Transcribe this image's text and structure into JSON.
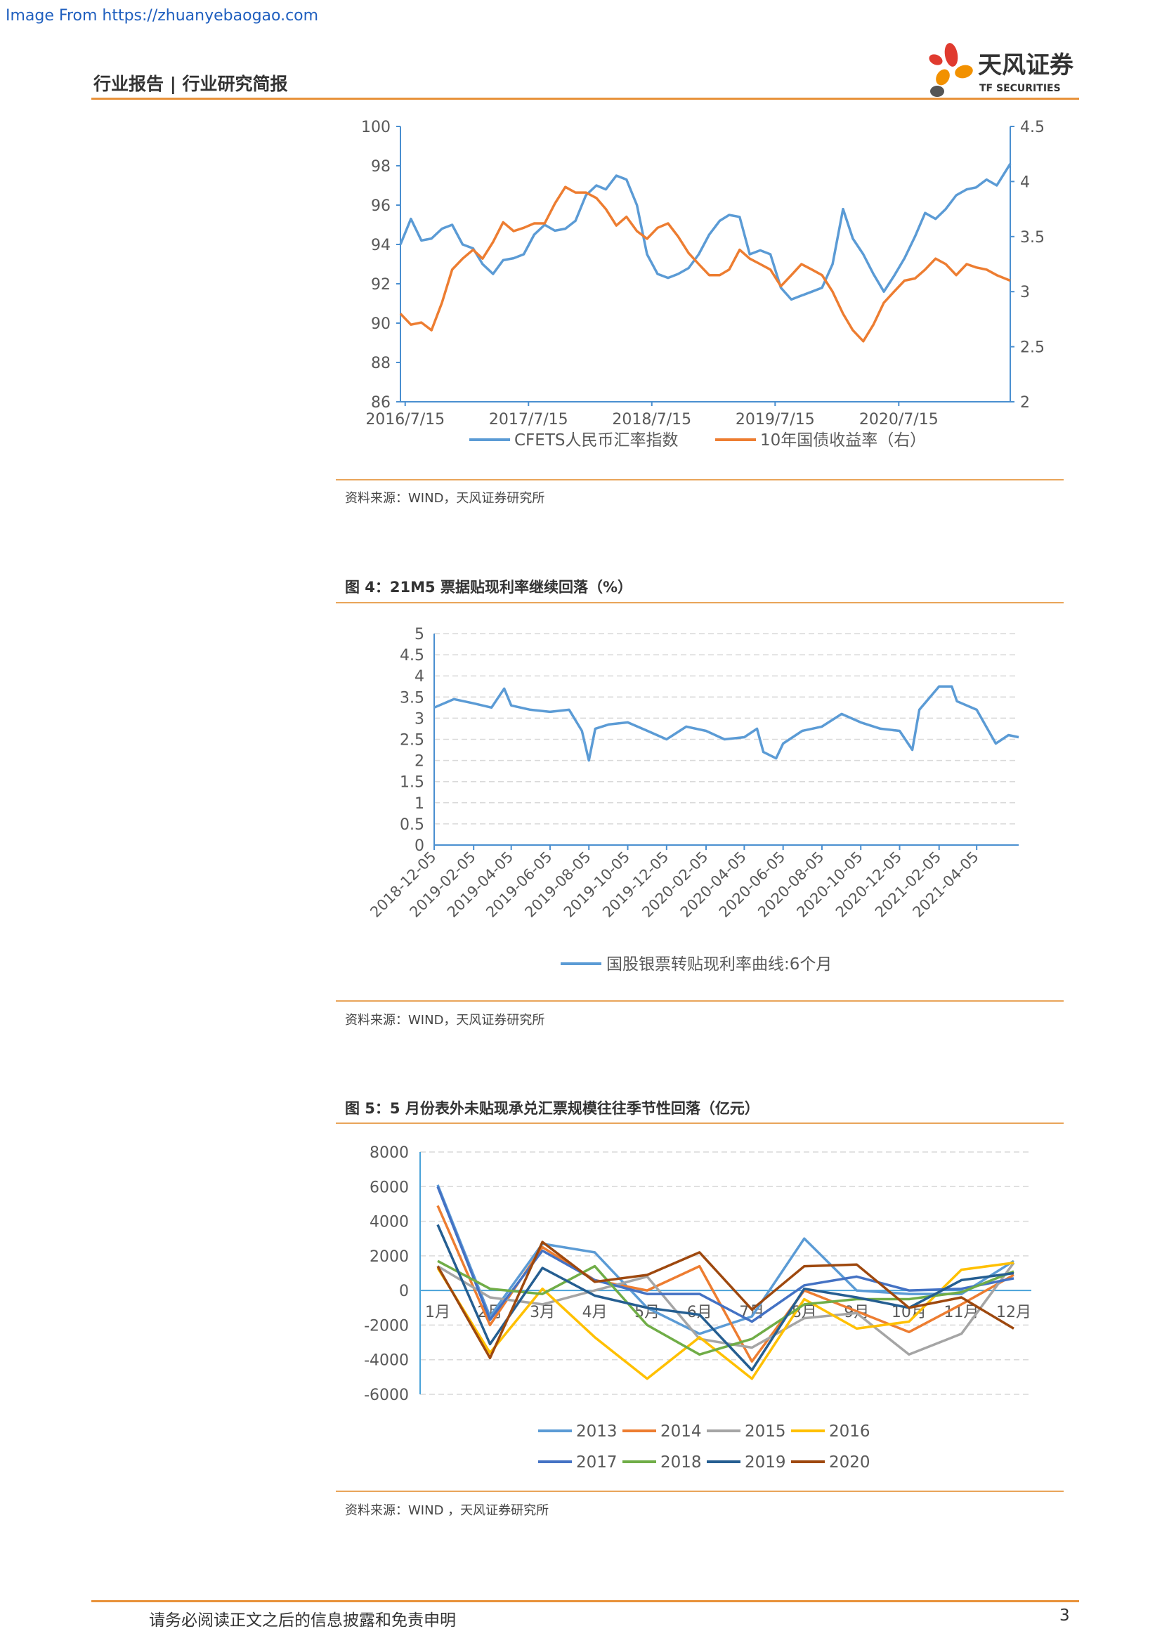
{
  "watermark": "Image From https://zhuanyebaogao.com",
  "header": {
    "title": "行业报告 | 行业研究简报",
    "logo_cn": "天风证券",
    "logo_en": "TF SECURITIES"
  },
  "colors": {
    "accent": "#e8923a",
    "blue": "#5b9bd5",
    "orange": "#ed7d31"
  },
  "figure3": {
    "source": "资料来源：WIND，天风证券研究所",
    "chart_data": {
      "type": "line",
      "x_ticks": [
        "2016/7/15",
        "2017/7/15",
        "2018/7/15",
        "2019/7/15",
        "2020/7/15"
      ],
      "y_left_ticks": [
        "100",
        "98",
        "96",
        "94",
        "92",
        "90",
        "88",
        "86"
      ],
      "y_right_ticks": [
        "4.5",
        "4",
        "3.5",
        "3",
        "2.5",
        "2"
      ],
      "ylim_left": [
        86,
        100
      ],
      "ylim_right": [
        2,
        4.5
      ],
      "xlim": [
        "2016-07-01",
        "2021-06-10"
      ],
      "legend_position": "bottom",
      "series": [
        {
          "name": "CFETS人民币汇率指数",
          "axis": "left",
          "color": "#5b9bd5",
          "x": [
            "2016-07-01",
            "2016-08-01",
            "2016-09-01",
            "2016-10-01",
            "2016-11-01",
            "2016-12-01",
            "2017-01-01",
            "2017-02-01",
            "2017-03-01",
            "2017-04-01",
            "2017-05-01",
            "2017-06-01",
            "2017-07-01",
            "2017-08-01",
            "2017-09-01",
            "2017-10-01",
            "2017-11-01",
            "2017-12-01",
            "2018-01-01",
            "2018-02-01",
            "2018-03-01",
            "2018-04-01",
            "2018-05-01",
            "2018-06-01",
            "2018-07-01",
            "2018-08-01",
            "2018-09-01",
            "2018-10-01",
            "2018-11-01",
            "2018-12-01",
            "2019-01-01",
            "2019-02-01",
            "2019-03-01",
            "2019-04-01",
            "2019-05-01",
            "2019-06-01",
            "2019-07-01",
            "2019-08-01",
            "2019-09-01",
            "2019-10-01",
            "2019-11-01",
            "2019-12-01",
            "2020-01-01",
            "2020-02-01",
            "2020-03-01",
            "2020-04-01",
            "2020-05-01",
            "2020-06-01",
            "2020-07-01",
            "2020-08-01",
            "2020-09-01",
            "2020-10-01",
            "2020-11-01",
            "2020-12-01",
            "2021-01-01",
            "2021-02-01",
            "2021-03-01",
            "2021-04-01",
            "2021-05-01",
            "2021-06-10"
          ],
          "values": [
            94.0,
            95.3,
            94.2,
            94.3,
            94.8,
            95.0,
            94.0,
            93.8,
            93.0,
            92.5,
            93.2,
            93.3,
            93.5,
            94.5,
            95.0,
            94.7,
            94.8,
            95.2,
            96.5,
            97.0,
            96.8,
            97.5,
            97.3,
            96.0,
            93.5,
            92.5,
            92.3,
            92.5,
            92.8,
            93.5,
            94.5,
            95.2,
            95.5,
            95.4,
            93.5,
            93.7,
            93.5,
            91.8,
            91.2,
            91.4,
            91.6,
            91.8,
            93.0,
            95.8,
            94.3,
            93.5,
            92.5,
            91.6,
            92.4,
            93.3,
            94.4,
            95.6,
            95.3,
            95.8,
            96.5,
            96.8,
            96.9,
            97.3,
            97.0,
            98.1
          ]
        },
        {
          "name": "10年国债收益率（右）",
          "axis": "right",
          "color": "#ed7d31",
          "x": [
            "2016-07-01",
            "2016-08-01",
            "2016-09-01",
            "2016-10-01",
            "2016-11-01",
            "2016-12-01",
            "2017-01-01",
            "2017-02-01",
            "2017-03-01",
            "2017-04-01",
            "2017-05-01",
            "2017-06-01",
            "2017-07-01",
            "2017-08-01",
            "2017-09-01",
            "2017-10-01",
            "2017-11-01",
            "2017-12-01",
            "2018-01-01",
            "2018-02-01",
            "2018-03-01",
            "2018-04-01",
            "2018-05-01",
            "2018-06-01",
            "2018-07-01",
            "2018-08-01",
            "2018-09-01",
            "2018-10-01",
            "2018-11-01",
            "2018-12-01",
            "2019-01-01",
            "2019-02-01",
            "2019-03-01",
            "2019-04-01",
            "2019-05-01",
            "2019-06-01",
            "2019-07-01",
            "2019-08-01",
            "2019-09-01",
            "2019-10-01",
            "2019-11-01",
            "2019-12-01",
            "2020-01-01",
            "2020-02-01",
            "2020-03-01",
            "2020-04-01",
            "2020-05-01",
            "2020-06-01",
            "2020-07-01",
            "2020-08-01",
            "2020-09-01",
            "2020-10-01",
            "2020-11-01",
            "2020-12-01",
            "2021-01-01",
            "2021-02-01",
            "2021-03-01",
            "2021-04-01",
            "2021-05-01",
            "2021-06-10"
          ],
          "values": [
            2.8,
            2.7,
            2.72,
            2.65,
            2.9,
            3.2,
            3.3,
            3.38,
            3.3,
            3.45,
            3.63,
            3.55,
            3.58,
            3.62,
            3.62,
            3.8,
            3.95,
            3.9,
            3.9,
            3.85,
            3.75,
            3.6,
            3.68,
            3.55,
            3.48,
            3.58,
            3.62,
            3.5,
            3.35,
            3.25,
            3.15,
            3.15,
            3.2,
            3.38,
            3.3,
            3.25,
            3.2,
            3.05,
            3.15,
            3.25,
            3.2,
            3.15,
            3.0,
            2.8,
            2.65,
            2.55,
            2.7,
            2.9,
            3.0,
            3.1,
            3.12,
            3.2,
            3.3,
            3.25,
            3.15,
            3.25,
            3.22,
            3.2,
            3.15,
            3.1
          ]
        }
      ]
    }
  },
  "figure4": {
    "title": "图 4：21M5 票据贴现利率继续回落（%）",
    "source": "资料来源：WIND，天风证券研究所",
    "chart_data": {
      "type": "line",
      "x_ticks": [
        "2018-12-05",
        "2019-02-05",
        "2019-04-05",
        "2019-06-05",
        "2019-08-05",
        "2019-10-05",
        "2019-12-05",
        "2020-02-05",
        "2020-04-05",
        "2020-06-05",
        "2020-08-05",
        "2020-10-05",
        "2020-12-05",
        "2021-02-05",
        "2021-04-05"
      ],
      "y_ticks": [
        "5",
        "4.5",
        "4",
        "3.5",
        "3",
        "2.5",
        "2",
        "1.5",
        "1",
        "0.5",
        "0"
      ],
      "ylim": [
        0,
        5
      ],
      "xlim": [
        "2018-12-05",
        "2021-06-10"
      ],
      "grid": true,
      "legend_position": "bottom",
      "series": [
        {
          "name": "国股银票转贴现利率曲线:6个月",
          "color": "#5b9bd5",
          "x": [
            "2018-12-05",
            "2019-01-05",
            "2019-02-05",
            "2019-03-05",
            "2019-03-25",
            "2019-04-05",
            "2019-05-05",
            "2019-06-05",
            "2019-07-05",
            "2019-07-25",
            "2019-08-05",
            "2019-08-15",
            "2019-09-05",
            "2019-10-05",
            "2019-11-05",
            "2019-12-05",
            "2020-01-05",
            "2020-02-05",
            "2020-03-05",
            "2020-04-05",
            "2020-04-25",
            "2020-05-05",
            "2020-05-25",
            "2020-06-05",
            "2020-07-05",
            "2020-08-05",
            "2020-09-05",
            "2020-10-05",
            "2020-11-05",
            "2020-12-05",
            "2020-12-25",
            "2021-01-05",
            "2021-02-05",
            "2021-02-25",
            "2021-03-05",
            "2021-04-05",
            "2021-05-05",
            "2021-05-25",
            "2021-06-10"
          ],
          "values": [
            3.25,
            3.45,
            3.35,
            3.25,
            3.7,
            3.3,
            3.2,
            3.15,
            3.2,
            2.7,
            2.0,
            2.75,
            2.85,
            2.9,
            2.7,
            2.5,
            2.8,
            2.7,
            2.5,
            2.55,
            2.75,
            2.2,
            2.05,
            2.4,
            2.7,
            2.8,
            3.1,
            2.9,
            2.75,
            2.7,
            2.25,
            3.2,
            3.75,
            3.75,
            3.4,
            3.2,
            2.4,
            2.6,
            2.55
          ]
        }
      ]
    }
  },
  "figure5": {
    "title": "图 5：5 月份表外未贴现承兑汇票规模往往季节性回落（亿元）",
    "source": "资料来源：WIND ，天风证券研究所",
    "chart_data": {
      "type": "line",
      "categories": [
        "1月",
        "2月",
        "3月",
        "4月",
        "5月",
        "6月",
        "7月",
        "8月",
        "9月",
        "10月",
        "11月",
        "12月"
      ],
      "y_ticks": [
        "8000",
        "6000",
        "4000",
        "2000",
        "0",
        "-2000",
        "-4000",
        "-6000"
      ],
      "ylim": [
        -6000,
        8000
      ],
      "grid": true,
      "legend_position": "bottom",
      "series": [
        {
          "name": "2013",
          "color": "#5b9bd5",
          "values": [
            6100,
            -1500,
            2700,
            2200,
            -1000,
            -2500,
            -1500,
            3000,
            0,
            -200,
            -200,
            1700
          ]
        },
        {
          "name": "2014",
          "color": "#ed7d31",
          "values": [
            4900,
            -2000,
            2500,
            600,
            0,
            1400,
            -4100,
            0,
            -1200,
            -2400,
            -800,
            900
          ]
        },
        {
          "name": "2015",
          "color": "#a5a5a5",
          "values": [
            1400,
            -400,
            -800,
            0,
            800,
            -2800,
            -3300,
            -1600,
            -1300,
            -3700,
            -2500,
            1600
          ]
        },
        {
          "name": "2016",
          "color": "#ffc000",
          "values": [
            1300,
            -3600,
            100,
            -2700,
            -5100,
            -2700,
            -5100,
            -500,
            -2200,
            -1800,
            1200,
            1600
          ]
        },
        {
          "name": "2017",
          "color": "#4472c4",
          "values": [
            6000,
            -1700,
            2300,
            600,
            -200,
            -200,
            -1800,
            300,
            800,
            0,
            100,
            700
          ]
        },
        {
          "name": "2018",
          "color": "#70ad47",
          "values": [
            1700,
            100,
            -200,
            1400,
            -2000,
            -3700,
            -2800,
            -800,
            -500,
            -500,
            -100,
            1100
          ]
        },
        {
          "name": "2019",
          "color": "#255e91",
          "values": [
            3800,
            -3100,
            1300,
            -300,
            -1000,
            -1400,
            -4600,
            100,
            -400,
            -1000,
            600,
            1000
          ]
        },
        {
          "name": "2020",
          "color": "#9e480e",
          "values": [
            1400,
            -3900,
            2800,
            500,
            900,
            2200,
            -1100,
            1400,
            1500,
            -1000,
            -400,
            -2200
          ]
        }
      ]
    }
  },
  "footer": {
    "disclaimer": "请务必阅读正文之后的信息披露和免责申明",
    "page_number": "3"
  }
}
